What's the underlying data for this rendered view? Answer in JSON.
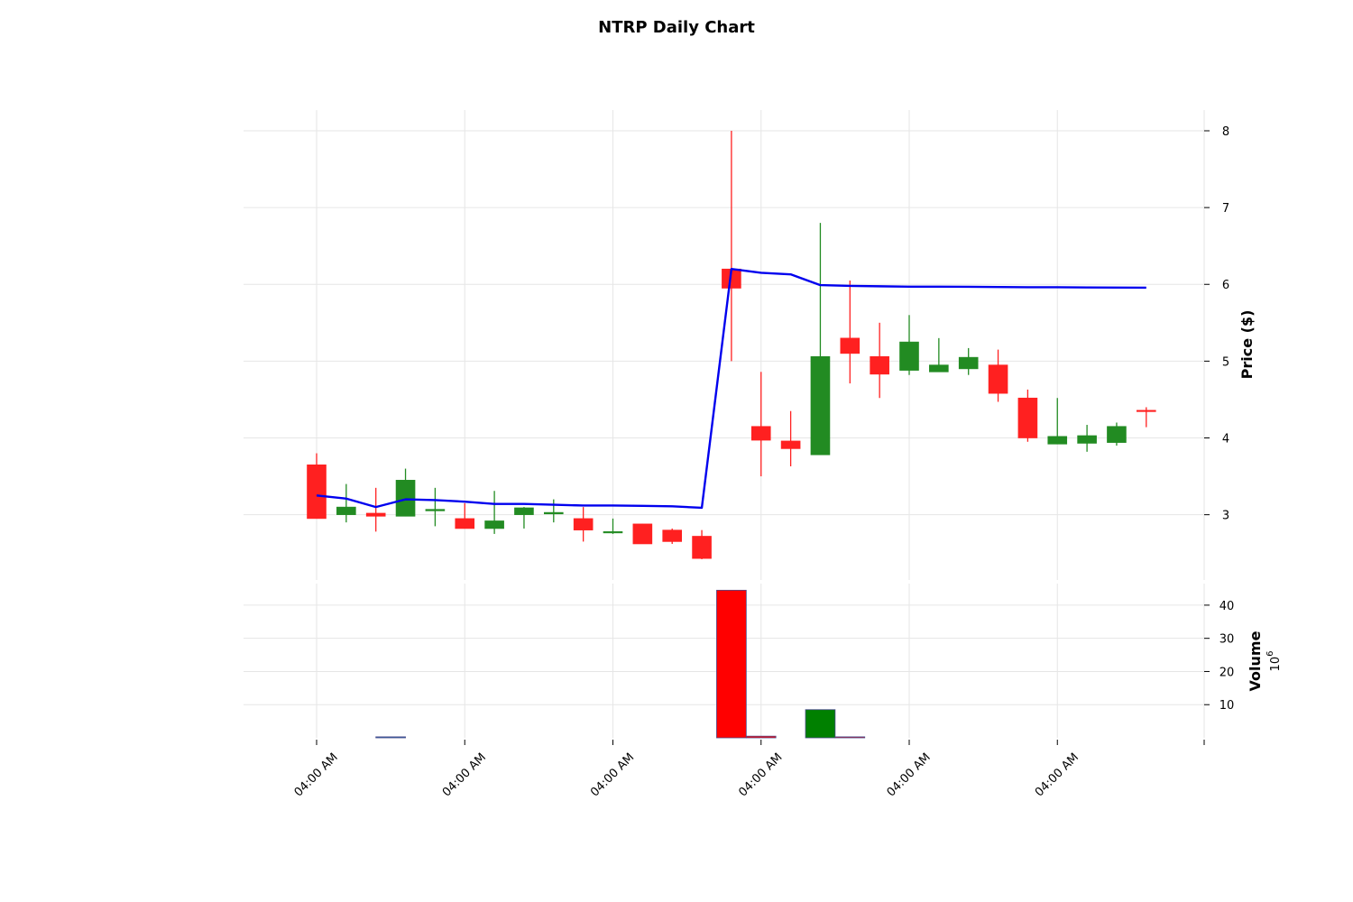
{
  "chart_data": {
    "type": "candlestick",
    "title": "NTRP Daily Chart",
    "x_tick_labels": [
      "04:00 AM",
      "04:00 AM",
      "04:00 AM",
      "04:00 AM",
      "04:00 AM",
      "04:00 AM"
    ],
    "x_tick_indices": [
      0,
      5,
      10,
      15,
      20,
      25
    ],
    "price_panel": {
      "ylabel": "Price ($)",
      "yticks": [
        3,
        4,
        5,
        6,
        7,
        8
      ],
      "ylim": [
        2.15,
        8.27
      ],
      "up_color": "#228B22",
      "down_color": "#FF2020",
      "candles": [
        {
          "o": 3.65,
          "h": 3.8,
          "l": 2.95,
          "c": 2.95
        },
        {
          "o": 3.0,
          "h": 3.4,
          "l": 2.9,
          "c": 3.1
        },
        {
          "o": 3.02,
          "h": 3.35,
          "l": 2.78,
          "c": 2.98
        },
        {
          "o": 2.98,
          "h": 3.6,
          "l": 2.98,
          "c": 3.45
        },
        {
          "o": 3.05,
          "h": 3.35,
          "l": 2.85,
          "c": 3.07
        },
        {
          "o": 2.95,
          "h": 3.15,
          "l": 2.82,
          "c": 2.82
        },
        {
          "o": 2.82,
          "h": 3.31,
          "l": 2.75,
          "c": 2.92
        },
        {
          "o": 3.0,
          "h": 3.1,
          "l": 2.82,
          "c": 3.09
        },
        {
          "o": 3.01,
          "h": 3.2,
          "l": 2.9,
          "c": 3.03
        },
        {
          "o": 2.95,
          "h": 3.1,
          "l": 2.65,
          "c": 2.8
        },
        {
          "o": 2.78,
          "h": 2.95,
          "l": 2.75,
          "c": 2.78
        },
        {
          "o": 2.88,
          "h": 2.88,
          "l": 2.62,
          "c": 2.62
        },
        {
          "o": 2.8,
          "h": 2.82,
          "l": 2.62,
          "c": 2.65
        },
        {
          "o": 2.72,
          "h": 2.8,
          "l": 2.42,
          "c": 2.43
        },
        {
          "o": 6.2,
          "h": 8.0,
          "l": 5.0,
          "c": 5.95
        },
        {
          "o": 4.15,
          "h": 4.86,
          "l": 3.5,
          "c": 3.97
        },
        {
          "o": 3.96,
          "h": 4.35,
          "l": 3.63,
          "c": 3.86
        },
        {
          "o": 3.78,
          "h": 6.8,
          "l": 3.78,
          "c": 5.06
        },
        {
          "o": 5.3,
          "h": 6.05,
          "l": 4.71,
          "c": 5.1
        },
        {
          "o": 5.06,
          "h": 5.5,
          "l": 4.52,
          "c": 4.83
        },
        {
          "o": 4.88,
          "h": 5.6,
          "l": 4.82,
          "c": 5.25
        },
        {
          "o": 4.86,
          "h": 5.3,
          "l": 4.86,
          "c": 4.95
        },
        {
          "o": 4.9,
          "h": 5.17,
          "l": 4.82,
          "c": 5.05
        },
        {
          "o": 4.95,
          "h": 5.15,
          "l": 4.47,
          "c": 4.58
        },
        {
          "o": 4.52,
          "h": 4.63,
          "l": 3.95,
          "c": 4.0
        },
        {
          "o": 3.92,
          "h": 4.52,
          "l": 3.92,
          "c": 4.02
        },
        {
          "o": 3.93,
          "h": 4.17,
          "l": 3.82,
          "c": 4.03
        },
        {
          "o": 3.94,
          "h": 4.2,
          "l": 3.9,
          "c": 4.15
        },
        {
          "o": 4.36,
          "h": 4.4,
          "l": 4.14,
          "c": 4.35
        }
      ],
      "ma_line": {
        "color": "#0000EE",
        "values": [
          3.25,
          3.21,
          3.1,
          3.2,
          3.19,
          3.17,
          3.14,
          3.14,
          3.13,
          3.12,
          3.12,
          3.115,
          3.11,
          3.09,
          6.2,
          6.15,
          6.13,
          5.99,
          5.98,
          5.975,
          5.97,
          5.97,
          5.968,
          5.965,
          5.963,
          5.962,
          5.96,
          5.958,
          5.957
        ]
      }
    },
    "volume_panel": {
      "ylabel": "Volume",
      "yscale_label": "10",
      "yscale_exp": "6",
      "yticks": [
        10,
        20,
        30,
        40
      ],
      "ylim": [
        0,
        46.5
      ],
      "bars": [
        {
          "x": 2.5,
          "v": 0.3,
          "width": 1.0,
          "color": "#1f77b4"
        },
        {
          "x": 14.0,
          "v": 44.5,
          "width": 1.0,
          "color": "#FF0000"
        },
        {
          "x": 15.0,
          "v": 0.5,
          "width": 1.0,
          "color": "#FF0000"
        },
        {
          "x": 17.0,
          "v": 8.5,
          "width": 1.0,
          "color": "#008000"
        },
        {
          "x": 18.0,
          "v": 0.3,
          "width": 1.0,
          "color": "#FF0000"
        }
      ]
    },
    "grid": true
  }
}
